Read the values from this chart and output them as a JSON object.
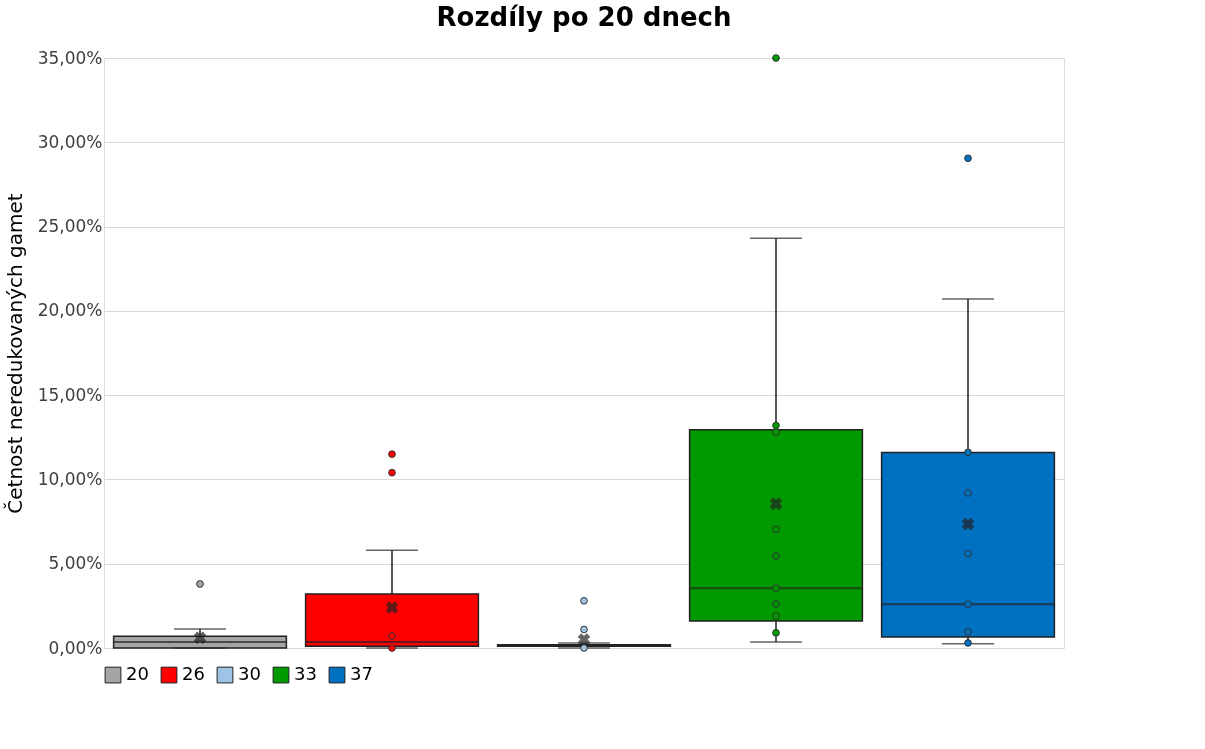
{
  "chart_data": {
    "type": "box",
    "title": "Rozdíly po 20 dnech",
    "ylabel": "Četnost neredukovaných gamet",
    "categories": [
      null
    ],
    "series": [
      {
        "name": "20",
        "color": "#a5a5a5",
        "boxes": [
          {
            "low": 0.0,
            "q1": 0.0,
            "median": 0.36,
            "q3": 0.7,
            "high": 1.13,
            "mean": 0.6,
            "outliers": [
              3.8
            ]
          }
        ]
      },
      {
        "name": "26",
        "color": "#ff0000",
        "boxes": [
          {
            "low": 0.0,
            "q1": 0.1,
            "median": 0.36,
            "q3": 3.2,
            "high": 5.8,
            "mean": 2.4,
            "outliers": [
              11.5,
              10.4,
              0.7,
              0.0
            ]
          }
        ]
      },
      {
        "name": "30",
        "color": "#9dc3e6",
        "boxes": [
          {
            "low": 0.0,
            "q1": 0.1,
            "median": 0.15,
            "q3": 0.2,
            "high": 0.3,
            "mean": 0.5,
            "outliers": [
              2.8,
              1.1,
              0.0
            ]
          }
        ]
      },
      {
        "name": "33",
        "color": "#009900",
        "boxes": [
          {
            "low": 0.36,
            "q1": 1.6,
            "median": 3.55,
            "q3": 12.95,
            "high": 24.3,
            "mean": 8.55,
            "outliers": [
              35.0,
              13.2,
              12.8,
              7.05,
              5.45,
              3.55,
              2.6,
              1.9,
              0.9
            ]
          }
        ]
      },
      {
        "name": "37",
        "color": "#0070c0",
        "boxes": [
          {
            "low": 0.25,
            "q1": 0.65,
            "median": 2.6,
            "q3": 11.6,
            "high": 20.7,
            "mean": 7.35,
            "outliers": [
              29.05,
              11.6,
              9.2,
              5.6,
              2.6,
              0.95,
              0.3
            ]
          }
        ]
      }
    ],
    "ylim": [
      0,
      35
    ],
    "yticks": [
      {
        "value": 0,
        "label": "0,00%"
      },
      {
        "value": 5,
        "label": "5,00%"
      },
      {
        "value": 10,
        "label": "10,00%"
      },
      {
        "value": 15,
        "label": "15,00%"
      },
      {
        "value": 20,
        "label": "20,00%"
      },
      {
        "value": 25,
        "label": "25,00%"
      },
      {
        "value": 30,
        "label": "30,00%"
      },
      {
        "value": 35,
        "label": "35,00%"
      }
    ],
    "grid": "y",
    "legend": "bottom",
    "tick_labels": "y"
  }
}
